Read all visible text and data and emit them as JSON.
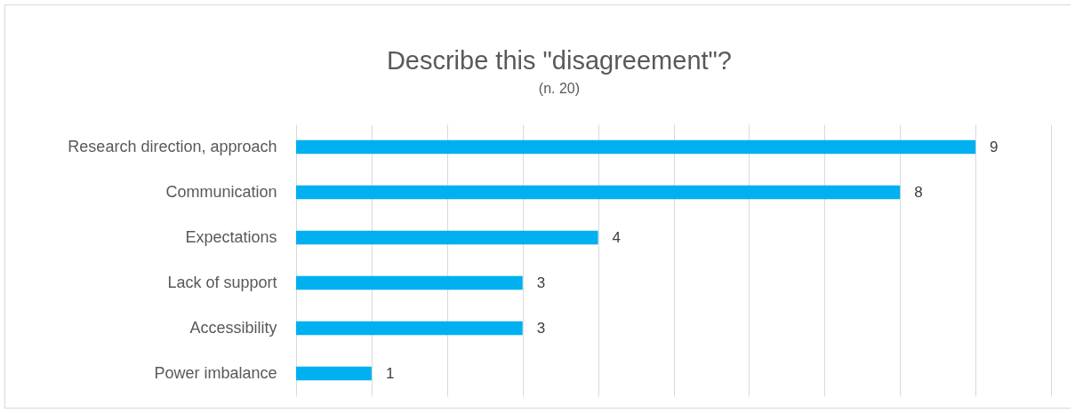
{
  "chart_data": {
    "type": "bar",
    "orientation": "horizontal",
    "title": "Describe this \"disagreement\"?",
    "subtitle": "(n. 20)",
    "categories": [
      "Research direction, approach",
      "Communication",
      "Expectations",
      "Lack of support",
      "Accessibility",
      "Power imbalance"
    ],
    "values": [
      9,
      8,
      4,
      3,
      3,
      1
    ],
    "color": "#00b0f0",
    "xlim": [
      0,
      10
    ],
    "xticks": [
      {
        "value": 0,
        "label": null
      },
      {
        "value": 1,
        "label": null
      },
      {
        "value": 2,
        "label": null
      },
      {
        "value": 3,
        "label": null
      },
      {
        "value": 4,
        "label": null
      },
      {
        "value": 5,
        "label": null
      },
      {
        "value": 6,
        "label": null
      },
      {
        "value": 7,
        "label": null
      },
      {
        "value": 8,
        "label": null
      },
      {
        "value": 9,
        "label": null
      },
      {
        "value": 10,
        "label": null
      }
    ],
    "grid": "x",
    "data_labels": true,
    "tick_labels": "y"
  }
}
